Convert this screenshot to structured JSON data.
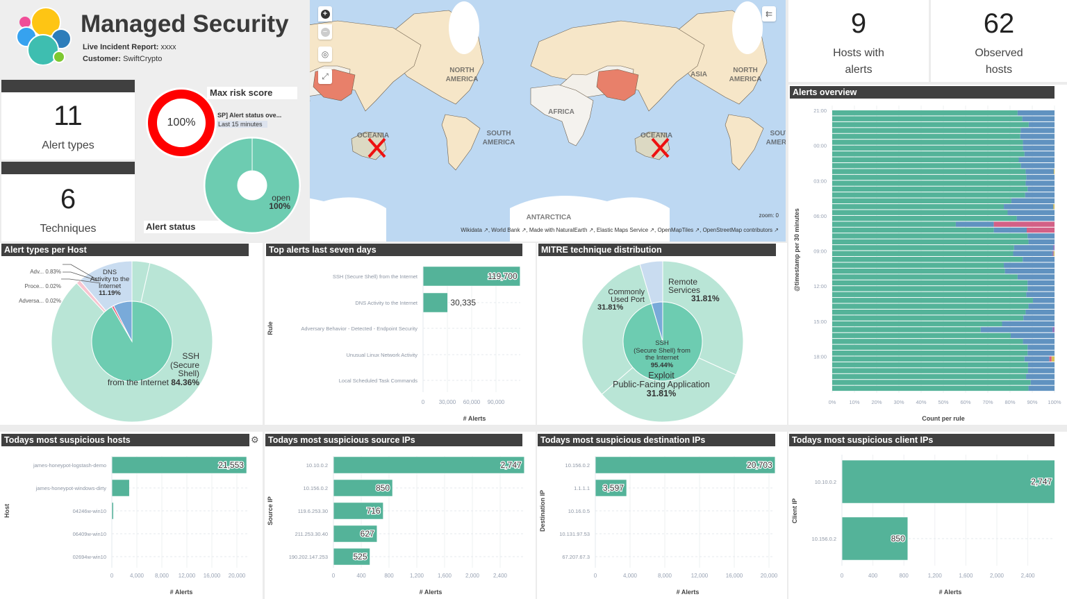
{
  "header": {
    "title": "Managed Security",
    "report_label": "Live Incident Report:",
    "report_value": "xxxx",
    "customer_label": "Customer:",
    "customer_value": "SwiftCrypto",
    "logo_colors": [
      "#f04e98",
      "#fec514",
      "#36a2ef",
      "#2d7dba",
      "#3ebeb0",
      "#7ec831"
    ]
  },
  "stats": [
    {
      "value": "11",
      "label": "Alert types"
    },
    {
      "value": "6",
      "label": "Techniques"
    },
    {
      "value": "9",
      "label": "Hosts with alerts"
    },
    {
      "value": "62",
      "label": "Observed hosts"
    }
  ],
  "gauge": {
    "title": "Max risk score",
    "value": 100,
    "value_label": "100%",
    "color": "#ff0000"
  },
  "alert_status": {
    "title": "Alert status",
    "tooltip_title": "SP] Alert status ove...",
    "tooltip_subtitle": "Last 15 minutes",
    "slices": [
      {
        "label": "open",
        "pct_label": "100%",
        "value": 100,
        "color": "#6dccb1"
      }
    ]
  },
  "map": {
    "labels": {
      "north_america": "NORTH",
      "north_america2": "AMERICA",
      "south_america": "SOUTH",
      "south_america2": "AMERICA",
      "africa": "AFRICA",
      "asia": "ASIA",
      "oceania": "OCEANIA",
      "antarctica": "ANTARCTICA"
    },
    "zoom_label": "zoom: 0",
    "attribution": [
      "Wikidata",
      "World Bank",
      "Made with NaturalEarth",
      "Elastic Maps Service",
      "OpenMapTiles",
      "OpenStreetMap contributors"
    ],
    "controls": {
      "zoom_in": "+",
      "zoom_out": "−",
      "locate": "◎",
      "fullscreen": "⤢",
      "legend": "⇇"
    },
    "colors": {
      "water": "#bdd8f2",
      "land": "#f6e6c8",
      "china": "#e8806a",
      "oceania": "#dcd9c3",
      "africa": "#f4f2ee",
      "marker": "#ee1111"
    }
  },
  "panels": {
    "alert_types_per_host": "Alert types per Host",
    "top_alerts": "Top alerts last seven days",
    "mitre": "MITRE technique distribution",
    "alerts_overview": "Alerts overview",
    "hosts": "Todays most suspicious hosts",
    "source_ips": "Todays most suspicious source IPs",
    "destination_ips": "Todays most suspicious destination IPs",
    "client_ips": "Todays most suspicious client IPs"
  },
  "chart_data": [
    {
      "type": "pie",
      "title": "Alert types per Host",
      "inner": [
        {
          "value": 91.6,
          "color": "#6dccb1"
        },
        {
          "value": 0.87,
          "color": "#e7657f"
        },
        {
          "value": 7.53,
          "color": "#79aad9"
        }
      ],
      "outer": [
        {
          "label": "",
          "value": 3.58,
          "color": "#b9e5d6"
        },
        {
          "label": "SSH\n(Secure\nShell)\nfrom the Internet",
          "pct_label": "84.36%",
          "value": 84.36,
          "color": "#b9e5d6"
        },
        {
          "label": "Adv...",
          "pct_label": "0.83%",
          "value": 0.83,
          "color": "#f7c5d0"
        },
        {
          "label": "Proce...",
          "pct_label": "0.02%",
          "value": 0.02,
          "color": "#f7c5d0"
        },
        {
          "label": "Adversa...",
          "pct_label": "0.02%",
          "value": 0.02,
          "color": "#f7c5d0"
        },
        {
          "label": "DNS\nActivity to the\nInternet",
          "pct_label": "11.19%",
          "value": 11.19,
          "color": "#c9dcf0"
        }
      ]
    },
    {
      "type": "bar",
      "orientation": "horizontal",
      "title": "Top alerts last seven days",
      "categories": [
        "SSH (Secure Shell) from the Internet",
        "DNS Activity to the Internet",
        "Adversary Behavior - Detected - Endpoint Security",
        "Unusual Linux Network Activity",
        "Local Scheduled Task Commands"
      ],
      "values": [
        119700,
        30335,
        400,
        60,
        10
      ],
      "value_labels": [
        "119,700",
        "30,335",
        null,
        null,
        null
      ],
      "ticks": [
        0,
        30000,
        60000,
        90000
      ],
      "tick_labels": [
        "0",
        "30,000",
        "60,000",
        "90,000"
      ],
      "xlabel": "# Alerts",
      "ylabel": "Rule",
      "color": "#54b399"
    },
    {
      "type": "pie",
      "title": "MITRE technique distribution",
      "inner": [
        {
          "label": "SSH\n(Secure Shell) from\nthe Internet",
          "pct_label": "95.44%",
          "value": 95.44,
          "color": "#6dccb1"
        },
        {
          "value": 4.56,
          "color": "#79aad9"
        }
      ],
      "outer": [
        {
          "label": "Remote\nServices",
          "pct_label": "31.81%",
          "value": 31.81,
          "color": "#b9e5d6"
        },
        {
          "label": "Exploit\nPublic-Facing Application",
          "pct_label": "31.81%",
          "value": 31.81,
          "color": "#b9e5d6"
        },
        {
          "label": "Commonly\nUsed Port",
          "pct_label": "31.81%",
          "value": 31.81,
          "color": "#b9e5d6"
        },
        {
          "value": 4.57,
          "color": "#c9dcf0"
        }
      ]
    },
    {
      "type": "bar",
      "orientation": "horizontal",
      "stacked": "percent",
      "title": "Alerts overview",
      "xlabel": "Count per rule",
      "ylabel": "@timestamp per 30 minutes",
      "x_ticks": [
        "0%",
        "10%",
        "20%",
        "30%",
        "40%",
        "50%",
        "60%",
        "70%",
        "80%",
        "90%",
        "100%"
      ],
      "y_tick_labels": [
        "21:00",
        "00:00",
        "03:00",
        "06:00",
        "09:00",
        "12:00",
        "15:00",
        "18:00"
      ],
      "colors": [
        "#54b399",
        "#6092c0",
        "#d36086",
        "#9170b8",
        "#d6bf57"
      ],
      "rows": [
        [
          83.4,
          16.6,
          0,
          0,
          0
        ],
        [
          85.5,
          14.5,
          0,
          0,
          0
        ],
        [
          88.4,
          11.6,
          0,
          0,
          0
        ],
        [
          84.8,
          15.2,
          0,
          0,
          0
        ],
        [
          84.6,
          15.4,
          0,
          0,
          0
        ],
        [
          85.8,
          14.2,
          0,
          0,
          0
        ],
        [
          85.8,
          14.2,
          0,
          0,
          0
        ],
        [
          86.5,
          13.5,
          0,
          0,
          0
        ],
        [
          83.9,
          16.1,
          0,
          0,
          0
        ],
        [
          84.9,
          15.1,
          0,
          0,
          0
        ],
        [
          87.0,
          12.7,
          0,
          0,
          0.3
        ],
        [
          87.3,
          12.7,
          0,
          0,
          0
        ],
        [
          87.0,
          13.0,
          0,
          0,
          0
        ],
        [
          87.9,
          12.1,
          0,
          0,
          0
        ],
        [
          86.8,
          13.2,
          0,
          0,
          0
        ],
        [
          80.6,
          19.4,
          0,
          0,
          0
        ],
        [
          77.2,
          22.3,
          0,
          0,
          0.5
        ],
        [
          78.9,
          21.1,
          0,
          0,
          0
        ],
        [
          83.0,
          17.0,
          0,
          0,
          0
        ],
        [
          55.6,
          17.1,
          27.3,
          0,
          0
        ],
        [
          72.7,
          14.8,
          12.5,
          0,
          0
        ],
        [
          87.9,
          12.1,
          0,
          0,
          0
        ],
        [
          88.3,
          11.7,
          0,
          0,
          0
        ],
        [
          81.8,
          17.7,
          0,
          0.5,
          0
        ],
        [
          81.4,
          17.6,
          0,
          0.6,
          0.4
        ],
        [
          85.7,
          14.3,
          0,
          0,
          0
        ],
        [
          77.2,
          22.8,
          0,
          0,
          0
        ],
        [
          77.7,
          22.3,
          0,
          0,
          0
        ],
        [
          83.4,
          16.6,
          0,
          0,
          0
        ],
        [
          87.9,
          12.1,
          0,
          0,
          0
        ],
        [
          87.9,
          12.1,
          0,
          0,
          0
        ],
        [
          87.3,
          12.7,
          0,
          0,
          0
        ],
        [
          90.3,
          9.7,
          0,
          0,
          0
        ],
        [
          88.3,
          11.7,
          0,
          0,
          0
        ],
        [
          87.0,
          13.0,
          0,
          0,
          0
        ],
        [
          86.0,
          14.0,
          0,
          0,
          0
        ],
        [
          76.4,
          23.6,
          0,
          0,
          0
        ],
        [
          66.8,
          32.3,
          0,
          0.9,
          0
        ],
        [
          80.3,
          19.7,
          0,
          0,
          0
        ],
        [
          85.8,
          14.2,
          0,
          0,
          0
        ],
        [
          87.9,
          12.1,
          0,
          0,
          0
        ],
        [
          87.9,
          12.1,
          0,
          0,
          0
        ],
        [
          86.5,
          11.2,
          1.0,
          0,
          1.3
        ],
        [
          88.1,
          11.9,
          0,
          0,
          0
        ],
        [
          88.1,
          11.9,
          0,
          0,
          0
        ],
        [
          87.2,
          12.8,
          0,
          0,
          0
        ],
        [
          89.3,
          10.7,
          0,
          0,
          0
        ],
        [
          88.3,
          11.7,
          0,
          0,
          0
        ]
      ]
    },
    {
      "type": "bar",
      "orientation": "horizontal",
      "title": "Todays most suspicious hosts",
      "categories": [
        "james-honeypot-logstash-demo",
        "james-honeypot-windows-dirty",
        "04246w-win10",
        "06409w-win10",
        "02694w-win10"
      ],
      "values": [
        21553,
        2800,
        250,
        20,
        0
      ],
      "value_labels": [
        "21,553",
        null,
        null,
        null,
        null
      ],
      "ticks": [
        0,
        4000,
        8000,
        12000,
        16000,
        20000
      ],
      "tick_labels": [
        "0",
        "4,000",
        "8,000",
        "12,000",
        "16,000",
        "20,000"
      ],
      "xlabel": "# Alerts",
      "ylabel": "Host",
      "color": "#54b399"
    },
    {
      "type": "bar",
      "orientation": "horizontal",
      "title": "Todays most suspicious source IPs",
      "categories": [
        "10.10.0.2",
        "10.156.0.2",
        "119.6.253.30",
        "211.253.30.40",
        "190.202.147.253"
      ],
      "values": [
        2747,
        850,
        716,
        627,
        525
      ],
      "value_labels": [
        "2,747",
        "850",
        "716",
        "627",
        "525"
      ],
      "ticks": [
        0,
        400,
        800,
        1200,
        1600,
        2000,
        2400
      ],
      "tick_labels": [
        "0",
        "400",
        "800",
        "1,200",
        "1,600",
        "2,000",
        "2,400"
      ],
      "xlabel": "# Alerts",
      "ylabel": "Source IP",
      "color": "#54b399"
    },
    {
      "type": "bar",
      "orientation": "horizontal",
      "title": "Todays most suspicious destination IPs",
      "categories": [
        "10.156.0.2",
        "1.1.1.1",
        "10.16.0.5",
        "10.131.97.53",
        "67.207.67.3"
      ],
      "values": [
        20703,
        3597,
        0,
        0,
        0
      ],
      "value_labels": [
        "20,703",
        "3,597",
        null,
        null,
        null
      ],
      "ticks": [
        0,
        4000,
        8000,
        12000,
        16000,
        20000
      ],
      "tick_labels": [
        "0",
        "4,000",
        "8,000",
        "12,000",
        "16,000",
        "20,000"
      ],
      "xlabel": "# Alerts",
      "ylabel": "Destination IP",
      "color": "#54b399"
    },
    {
      "type": "bar",
      "orientation": "horizontal",
      "title": "Todays most suspicious client IPs",
      "categories": [
        "10.10.0.2",
        "10.156.0.2"
      ],
      "values": [
        2747,
        850
      ],
      "value_labels": [
        "2,747",
        "850"
      ],
      "ticks": [
        0,
        400,
        800,
        1200,
        1600,
        2000,
        2400
      ],
      "tick_labels": [
        "0",
        "400",
        "800",
        "1,200",
        "1,600",
        "2,000",
        "2,400"
      ],
      "xlabel": "# Alerts",
      "ylabel": "Client IP",
      "color": "#54b399"
    }
  ]
}
